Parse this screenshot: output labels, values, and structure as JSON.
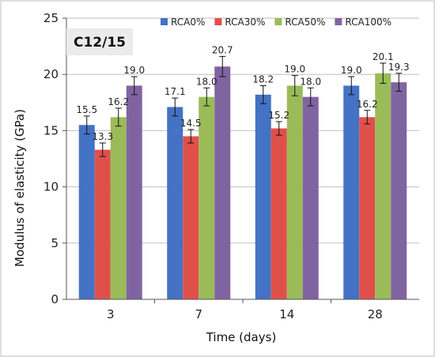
{
  "chart_data": {
    "type": "bar",
    "title": "C12/15",
    "xlabel": "Time (days)",
    "ylabel": "Modulus of elasticity (GPa)",
    "categories": [
      "3",
      "7",
      "14",
      "28"
    ],
    "ylim": [
      0,
      25
    ],
    "yticks": [
      0,
      5,
      10,
      15,
      20,
      25
    ],
    "grid": true,
    "legend_position": "top",
    "series": [
      {
        "name": "RCA0%",
        "color": "#4472c4",
        "values": [
          15.5,
          17.1,
          18.2,
          19.0
        ],
        "errors": [
          0.8,
          0.8,
          0.8,
          0.8
        ],
        "labels": [
          "15.5",
          "17.1",
          "18.2",
          "19.0"
        ]
      },
      {
        "name": "RCA30%",
        "color": "#e0504a",
        "values": [
          13.3,
          14.5,
          15.2,
          16.2
        ],
        "errors": [
          0.6,
          0.6,
          0.6,
          0.6
        ],
        "labels": [
          "13.3",
          "14.5",
          "15.2",
          "16.2"
        ]
      },
      {
        "name": "RCA50%",
        "color": "#9bbb59",
        "values": [
          16.2,
          18.0,
          19.0,
          20.1
        ],
        "errors": [
          0.8,
          0.8,
          0.9,
          0.9
        ],
        "labels": [
          "16.2",
          "18.0",
          "19.0",
          "20.1"
        ]
      },
      {
        "name": "RCA100%",
        "color": "#8064a2",
        "values": [
          19.0,
          20.7,
          18.0,
          19.3
        ],
        "errors": [
          0.8,
          0.9,
          0.8,
          0.8
        ],
        "labels": [
          "19.0",
          "20.7",
          "18.0",
          "19.3"
        ]
      }
    ]
  }
}
